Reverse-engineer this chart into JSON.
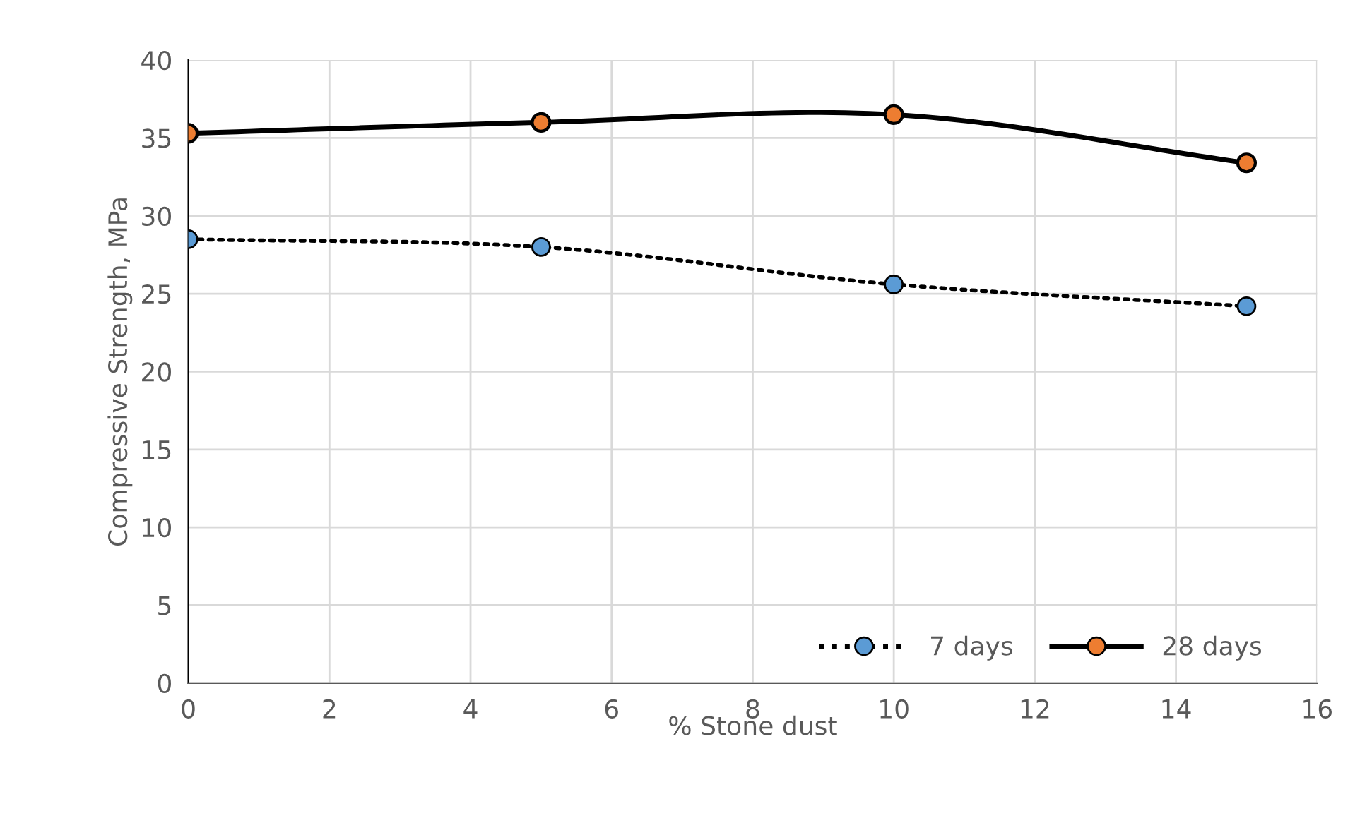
{
  "chart_data": {
    "type": "line",
    "xlabel": "% Stone dust",
    "ylabel": "Compressive Strength, MPa",
    "x": [
      0,
      5,
      10,
      15
    ],
    "series": [
      {
        "name": "7 days",
        "color": "#5b9bd5",
        "line_style": "dotted",
        "values": [
          28.5,
          28.0,
          25.6,
          24.2
        ]
      },
      {
        "name": "28 days",
        "color": "#ed7d31",
        "line_style": "solid",
        "values": [
          35.3,
          36.0,
          36.5,
          33.4
        ]
      }
    ],
    "marker": "circle",
    "xlim": [
      0,
      16
    ],
    "xticks": [
      0,
      2,
      4,
      6,
      8,
      10,
      12,
      14,
      16
    ],
    "ylim": [
      0,
      40
    ],
    "yticks": [
      0,
      5,
      10,
      15,
      20,
      25,
      30,
      35,
      40
    ],
    "grid": true,
    "legend": "bottom right"
  }
}
